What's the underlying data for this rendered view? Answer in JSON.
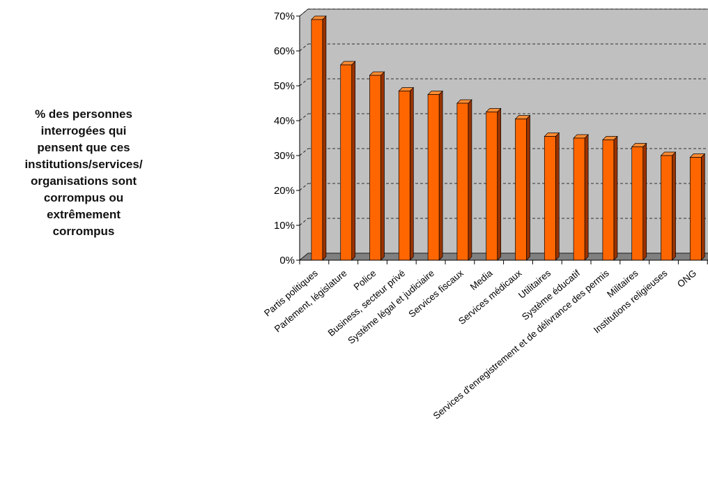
{
  "chart_data": {
    "type": "bar",
    "title": "% des personnes interrogées qui pensent que ces institutions/services/ organisations sont corrompus ou extrêmement corrompus",
    "title_lines": [
      "% des personnes",
      "interrogées qui",
      "pensent que ces",
      "institutions/services/",
      "organisations sont",
      "corrompus ou",
      "extrêmement",
      "corrompus"
    ],
    "categories": [
      "Partis politiques",
      "Parlement, législature",
      "Police",
      "Business, secteur privé",
      "Système légal et judiciaire",
      "Services fiscaux",
      "Media",
      "Services médicaux",
      "Utilitaires",
      "Système éducatif",
      "Services d'enregistrement et de délivrance des permis",
      "Militaires",
      "Institutions religieuses",
      "ONG"
    ],
    "values": [
      69,
      56,
      53,
      48.5,
      47.5,
      45,
      42.5,
      40.5,
      35.5,
      35,
      34.5,
      32.5,
      30,
      29.5
    ],
    "yticks": [
      "0%",
      "10%",
      "20%",
      "30%",
      "40%",
      "50%",
      "60%",
      "70%"
    ],
    "ylim": [
      0,
      70
    ],
    "xlabel": "",
    "ylabel": "",
    "grid": true,
    "colors": {
      "bar_front": "#FF6600",
      "bar_side": "#993300",
      "bar_top": "#FF8C33",
      "wall": "#C0C0C0",
      "floor": "#808080",
      "gridline": "#000000"
    }
  }
}
